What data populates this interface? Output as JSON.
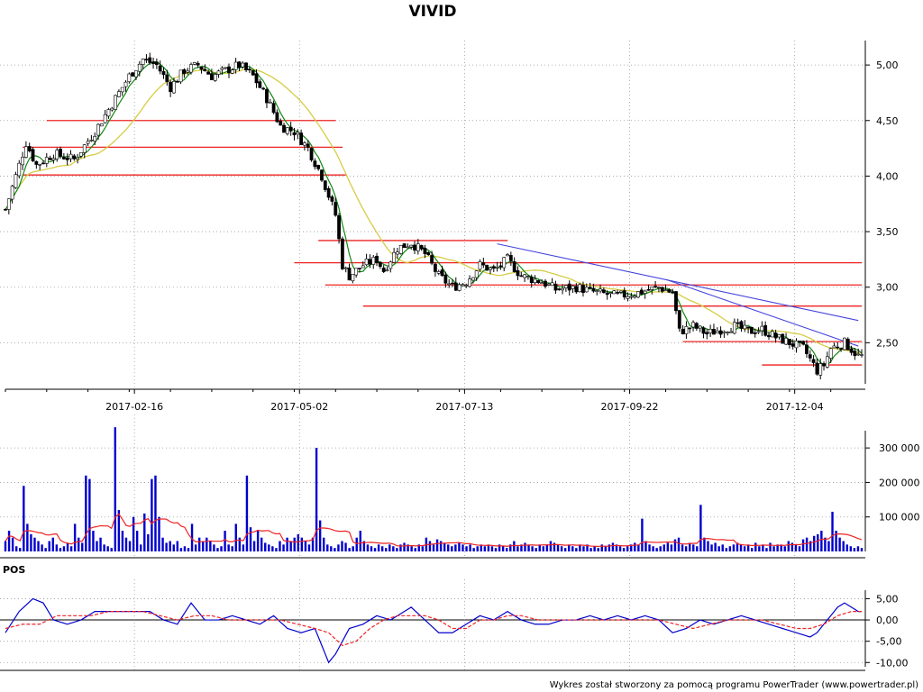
{
  "chart_data": [
    {
      "type": "candlestick",
      "title": "VIVID",
      "x_tick_labels": [
        "2017-02-16",
        "2017-05-02",
        "2017-07-13",
        "2017-09-22",
        "2017-12-04"
      ],
      "y_tick_labels": [
        "2,50",
        "3,00",
        "3,50",
        "4,00",
        "4,50",
        "5,00"
      ],
      "ylim": [
        2.13,
        5.22
      ],
      "grid": true,
      "price_keypoints": [
        [
          0,
          3.7
        ],
        [
          3,
          4.0
        ],
        [
          6,
          4.3
        ],
        [
          9,
          4.1
        ],
        [
          14,
          4.2
        ],
        [
          20,
          4.15
        ],
        [
          26,
          4.4
        ],
        [
          32,
          4.7
        ],
        [
          36,
          4.9
        ],
        [
          40,
          5.05
        ],
        [
          44,
          5.0
        ],
        [
          48,
          4.8
        ],
        [
          52,
          4.95
        ],
        [
          56,
          5.0
        ],
        [
          60,
          4.9
        ],
        [
          64,
          4.95
        ],
        [
          68,
          5.0
        ],
        [
          72,
          4.9
        ],
        [
          76,
          4.7
        ],
        [
          80,
          4.45
        ],
        [
          84,
          4.4
        ],
        [
          88,
          4.25
        ],
        [
          92,
          4.0
        ],
        [
          96,
          3.65
        ],
        [
          98,
          3.2
        ],
        [
          100,
          3.1
        ],
        [
          104,
          3.2
        ],
        [
          108,
          3.25
        ],
        [
          110,
          3.15
        ],
        [
          114,
          3.35
        ],
        [
          118,
          3.4
        ],
        [
          122,
          3.3
        ],
        [
          126,
          3.1
        ],
        [
          130,
          3.0
        ],
        [
          134,
          3.05
        ],
        [
          138,
          3.2
        ],
        [
          142,
          3.15
        ],
        [
          146,
          3.25
        ],
        [
          150,
          3.1
        ],
        [
          156,
          3.05
        ],
        [
          160,
          2.98
        ],
        [
          166,
          3.0
        ],
        [
          172,
          2.95
        ],
        [
          178,
          2.92
        ],
        [
          184,
          2.95
        ],
        [
          190,
          3.0
        ],
        [
          194,
          2.95
        ],
        [
          196,
          2.6
        ],
        [
          200,
          2.65
        ],
        [
          204,
          2.58
        ],
        [
          208,
          2.62
        ],
        [
          212,
          2.65
        ],
        [
          216,
          2.6
        ],
        [
          220,
          2.62
        ],
        [
          224,
          2.55
        ],
        [
          228,
          2.5
        ],
        [
          232,
          2.45
        ],
        [
          236,
          2.25
        ],
        [
          238,
          2.3
        ],
        [
          240,
          2.45
        ],
        [
          244,
          2.5
        ],
        [
          248,
          2.38
        ]
      ],
      "support_resistance_lines": [
        {
          "from_index": 12,
          "to_index": 95,
          "price": 4.5
        },
        {
          "from_index": 5,
          "to_index": 97,
          "price": 4.26
        },
        {
          "from_index": 5,
          "to_index": 98,
          "price": 4.01
        },
        {
          "from_index": 91,
          "to_index": 145,
          "price": 3.42
        },
        {
          "from_index": 84,
          "to_index": 248,
          "price": 3.22
        },
        {
          "from_index": 93,
          "to_index": 248,
          "price": 3.02
        },
        {
          "from_index": 104,
          "to_index": 248,
          "price": 2.83
        },
        {
          "from_index": 197,
          "to_index": 248,
          "price": 2.51
        },
        {
          "from_index": 220,
          "to_index": 248,
          "price": 2.3
        }
      ],
      "trend_lines": [
        {
          "from": [
            143,
            3.39
          ],
          "to": [
            248,
            2.7
          ]
        },
        {
          "from": [
            192,
            3.07
          ],
          "to": [
            248,
            2.47
          ]
        }
      ],
      "colors": {
        "up": "#ffffff",
        "down": "#000000",
        "support": "#ee2222",
        "trend": "#4444dd",
        "ma_short": "#118811",
        "ma_long": "#d6cc44"
      }
    },
    {
      "type": "bar",
      "y_tick_labels": [
        "100 000",
        "200 000",
        "300 000"
      ],
      "ylim": [
        0,
        350000
      ],
      "series": [
        {
          "values": [
            30000,
            60000,
            40000,
            15000,
            10000,
            190000,
            80000,
            50000,
            40000,
            30000,
            20000,
            10000,
            30000,
            40000,
            20000,
            10000,
            15000,
            25000,
            15000,
            80000,
            40000,
            25000,
            220000,
            210000,
            60000,
            30000,
            40000,
            20000,
            15000,
            10000,
            360000,
            120000,
            60000,
            40000,
            30000,
            100000,
            60000,
            20000,
            110000,
            50000,
            210000,
            220000,
            100000,
            40000,
            25000,
            30000,
            20000,
            30000,
            10000,
            15000,
            10000,
            80000,
            20000,
            40000,
            30000,
            40000,
            30000,
            20000,
            10000,
            15000,
            60000,
            20000,
            15000,
            80000,
            40000,
            20000,
            220000,
            70000,
            30000,
            60000,
            40000,
            25000,
            20000,
            15000,
            10000,
            30000,
            20000,
            40000,
            30000,
            40000,
            50000,
            40000,
            30000,
            20000,
            40000,
            300000,
            90000,
            40000,
            20000,
            15000,
            10000,
            20000,
            30000,
            25000,
            10000,
            15000,
            40000,
            60000,
            30000,
            20000,
            15000,
            10000,
            20000,
            15000,
            10000,
            20000,
            15000,
            10000,
            20000,
            25000,
            20000,
            15000,
            10000,
            20000,
            15000,
            40000,
            30000,
            20000,
            35000,
            30000,
            25000,
            20000,
            15000,
            20000,
            25000,
            20000,
            15000,
            20000,
            10000,
            15000,
            20000,
            15000,
            20000,
            15000,
            10000,
            20000,
            15000,
            10000,
            20000,
            30000,
            15000,
            20000,
            25000,
            20000,
            15000,
            10000,
            20000,
            15000,
            20000,
            30000,
            25000,
            20000,
            15000,
            10000,
            20000,
            15000,
            10000,
            20000,
            15000,
            20000,
            10000,
            15000,
            10000,
            20000,
            15000,
            20000,
            25000,
            20000,
            15000,
            10000,
            15000,
            20000,
            25000,
            20000,
            95000,
            30000,
            20000,
            15000,
            10000,
            15000,
            20000,
            25000,
            20000,
            35000,
            40000,
            20000,
            15000,
            25000,
            20000,
            15000,
            135000,
            40000,
            30000,
            20000,
            25000,
            15000,
            20000,
            10000,
            15000,
            20000,
            25000,
            20000,
            15000,
            20000,
            10000,
            25000,
            15000,
            20000,
            10000,
            25000,
            15000,
            20000,
            20000,
            15000,
            30000,
            25000,
            20000,
            15000,
            35000,
            40000,
            30000,
            45000,
            50000,
            60000,
            40000,
            30000,
            115000,
            60000,
            40000,
            30000,
            20000,
            15000,
            10000,
            15000,
            10000
          ]
        }
      ],
      "moving_average_color": "#ee2222",
      "bar_color": "#0000cc"
    },
    {
      "type": "line",
      "panel_label": "POS",
      "y_tick_labels": [
        "-10,00",
        "-5,00",
        "0,00",
        "5,00"
      ],
      "ylim": [
        -11,
        7
      ],
      "series": [
        {
          "color": "#0000cc",
          "keypoints": [
            [
              0,
              -3
            ],
            [
              4,
              2
            ],
            [
              8,
              5
            ],
            [
              11,
              4
            ],
            [
              14,
              0
            ],
            [
              18,
              -1
            ],
            [
              22,
              0
            ],
            [
              26,
              2
            ],
            [
              30,
              2
            ],
            [
              34,
              2
            ],
            [
              38,
              2
            ],
            [
              42,
              2
            ],
            [
              46,
              0
            ],
            [
              50,
              -1
            ],
            [
              54,
              4
            ],
            [
              58,
              0
            ],
            [
              62,
              0
            ],
            [
              66,
              1
            ],
            [
              70,
              0
            ],
            [
              74,
              -1
            ],
            [
              78,
              1
            ],
            [
              82,
              -2
            ],
            [
              86,
              -3
            ],
            [
              90,
              -2
            ],
            [
              92,
              -6
            ],
            [
              94,
              -10
            ],
            [
              96,
              -8
            ],
            [
              100,
              -2
            ],
            [
              104,
              -1
            ],
            [
              108,
              1
            ],
            [
              112,
              0
            ],
            [
              116,
              2
            ],
            [
              118,
              3
            ],
            [
              122,
              0
            ],
            [
              126,
              -3
            ],
            [
              130,
              -3
            ],
            [
              134,
              -1
            ],
            [
              138,
              1
            ],
            [
              142,
              0
            ],
            [
              146,
              2
            ],
            [
              150,
              0
            ],
            [
              154,
              -1
            ],
            [
              158,
              -1
            ],
            [
              162,
              0
            ],
            [
              166,
              0
            ],
            [
              170,
              1
            ],
            [
              174,
              0
            ],
            [
              178,
              1
            ],
            [
              182,
              0
            ],
            [
              186,
              1
            ],
            [
              190,
              0
            ],
            [
              194,
              -3
            ],
            [
              198,
              -2
            ],
            [
              202,
              0
            ],
            [
              206,
              -1
            ],
            [
              210,
              0
            ],
            [
              214,
              1
            ],
            [
              218,
              0
            ],
            [
              222,
              -1
            ],
            [
              226,
              -2
            ],
            [
              230,
              -3
            ],
            [
              234,
              -4
            ],
            [
              236,
              -3
            ],
            [
              238,
              -1
            ],
            [
              240,
              1
            ],
            [
              242,
              3
            ],
            [
              244,
              4
            ],
            [
              246,
              3
            ],
            [
              248,
              2
            ]
          ]
        },
        {
          "color": "#ee2222",
          "dashed": true,
          "keypoints": [
            [
              0,
              -2
            ],
            [
              5,
              -1
            ],
            [
              10,
              -1
            ],
            [
              15,
              1
            ],
            [
              20,
              1
            ],
            [
              25,
              1
            ],
            [
              30,
              2
            ],
            [
              35,
              2
            ],
            [
              40,
              2
            ],
            [
              45,
              1
            ],
            [
              50,
              0
            ],
            [
              55,
              1
            ],
            [
              60,
              1
            ],
            [
              65,
              0
            ],
            [
              70,
              0
            ],
            [
              75,
              0
            ],
            [
              80,
              0
            ],
            [
              85,
              -1
            ],
            [
              90,
              -2
            ],
            [
              94,
              -3
            ],
            [
              98,
              -6
            ],
            [
              102,
              -5
            ],
            [
              106,
              -2
            ],
            [
              110,
              0
            ],
            [
              114,
              1
            ],
            [
              118,
              1
            ],
            [
              122,
              1
            ],
            [
              126,
              0
            ],
            [
              130,
              -2
            ],
            [
              134,
              -2
            ],
            [
              138,
              0
            ],
            [
              142,
              0
            ],
            [
              146,
              1
            ],
            [
              150,
              1
            ],
            [
              155,
              0
            ],
            [
              160,
              0
            ],
            [
              165,
              0
            ],
            [
              170,
              0
            ],
            [
              175,
              0
            ],
            [
              180,
              0
            ],
            [
              185,
              0
            ],
            [
              190,
              0
            ],
            [
              195,
              -1
            ],
            [
              200,
              -2
            ],
            [
              205,
              -1
            ],
            [
              210,
              0
            ],
            [
              215,
              0
            ],
            [
              220,
              0
            ],
            [
              225,
              -1
            ],
            [
              230,
              -2
            ],
            [
              234,
              -2
            ],
            [
              238,
              -1
            ],
            [
              242,
              1
            ],
            [
              246,
              2
            ],
            [
              248,
              2
            ]
          ]
        }
      ]
    }
  ],
  "footer": "Wykres został stworzony za pomocą programu PowerTrader (www.powertrader.pl)"
}
